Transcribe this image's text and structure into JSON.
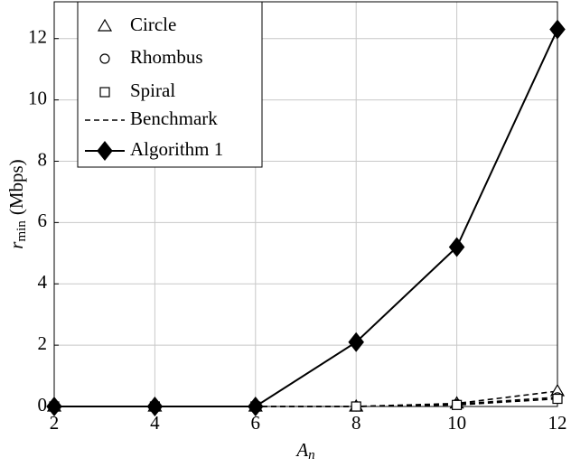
{
  "chart_data": {
    "type": "line",
    "xlabel": {
      "main": "A",
      "sub": "n"
    },
    "ylabel": {
      "main": "r",
      "sub": "min",
      "unit": "(Mbps)"
    },
    "x": [
      2,
      4,
      6,
      8,
      10,
      12
    ],
    "series": [
      {
        "name": "Circle",
        "color": "#000000",
        "marker": "triangle",
        "line": "dashed",
        "values": [
          0,
          0,
          0,
          0,
          0.1,
          0.5
        ]
      },
      {
        "name": "Rhombus",
        "color": "#000000",
        "marker": "circle",
        "line": "dashed",
        "values": [
          0,
          0,
          0,
          0,
          0.08,
          0.3
        ]
      },
      {
        "name": "Spiral",
        "color": "#000000",
        "marker": "square",
        "line": "dashed",
        "values": [
          0,
          0,
          0,
          0,
          0.05,
          0.25
        ]
      },
      {
        "name": "Benchmark",
        "color": "#000000",
        "marker": "none",
        "line": "dashed"
      },
      {
        "name": "Algorithm 1",
        "color": "#000000",
        "marker": "diamond",
        "line": "solid",
        "values": [
          0,
          0,
          0,
          2.1,
          5.2,
          12.3
        ]
      }
    ],
    "xlim": [
      2,
      12
    ],
    "xticks": [
      2,
      4,
      6,
      8,
      10,
      12
    ],
    "ylim": [
      0,
      13.2
    ],
    "yticks": [
      0,
      2,
      4,
      6,
      8,
      10,
      12
    ],
    "grid": true,
    "legend": "upper left"
  }
}
